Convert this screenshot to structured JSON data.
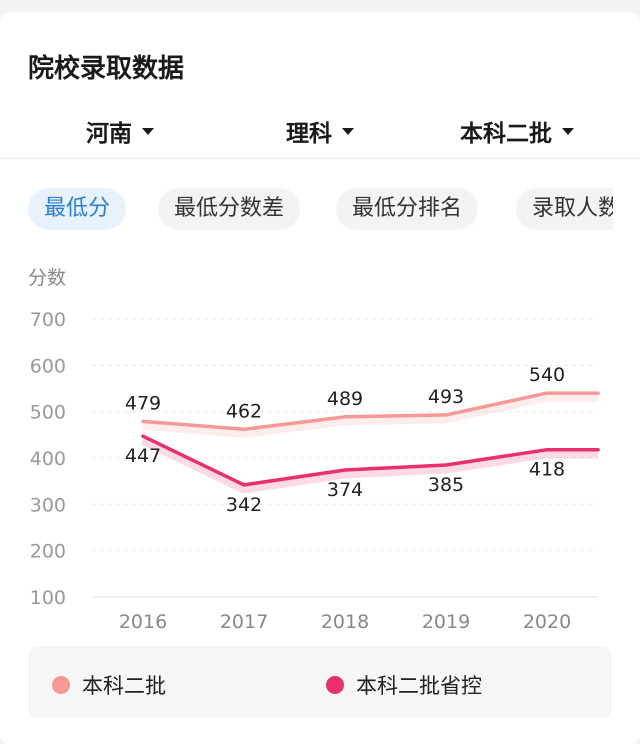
{
  "title": "院校录取数据",
  "filters": {
    "province": "河南",
    "subject": "理科",
    "batch": "本科二批"
  },
  "tabs": [
    "最低分",
    "最低分数差",
    "最低分排名",
    "录取人数"
  ],
  "colors": {
    "series1": "#f59896",
    "series2": "#e8306c",
    "active_tab_text": "#2a7fd6",
    "active_tab_bg": "#e8f2fd"
  },
  "chart_data": {
    "type": "line",
    "ylabel": "分数",
    "xlabel": "",
    "x": [
      "2016",
      "2017",
      "2018",
      "2019",
      "2020"
    ],
    "yticks": [
      "100",
      "200",
      "300",
      "400",
      "500",
      "600",
      "700"
    ],
    "ylim": [
      100,
      700
    ],
    "grid": true,
    "legend_position": "bottom",
    "series": [
      {
        "name": "本科二批",
        "values": [
          479,
          462,
          489,
          493,
          540
        ],
        "labels": [
          "479",
          "462",
          "489",
          "493",
          "540"
        ]
      },
      {
        "name": "本科二批省控",
        "values": [
          447,
          342,
          374,
          385,
          418
        ],
        "labels": [
          "447",
          "342",
          "374",
          "385",
          "418"
        ]
      }
    ]
  }
}
